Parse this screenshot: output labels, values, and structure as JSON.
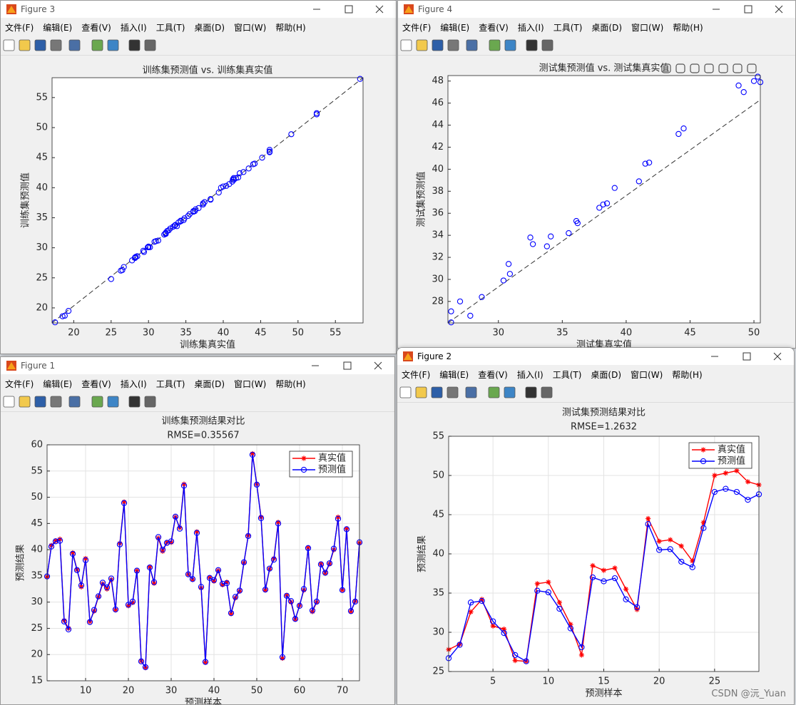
{
  "menu": [
    "文件(F)",
    "编辑(E)",
    "查看(V)",
    "插入(I)",
    "工具(T)",
    "桌面(D)",
    "窗口(W)",
    "帮助(H)"
  ],
  "watermark": "CSDN @沅_Yuan",
  "windows": [
    {
      "title": "Figure 3"
    },
    {
      "title": "Figure 4"
    },
    {
      "title": "Figure 1"
    },
    {
      "title": "Figure 2"
    }
  ],
  "chart_data": [
    {
      "type": "scatter",
      "title": "训练集预测值 vs. 训练集真实值",
      "xlabel": "训练集真实值",
      "ylabel": "训练集预测值",
      "color": "#0000ff",
      "xlim": [
        17.1,
        58.7
      ],
      "ylim": [
        17.5,
        58.3
      ],
      "xticks": [
        20,
        25,
        30,
        35,
        40,
        45,
        50,
        55
      ],
      "yticks": [
        20,
        25,
        30,
        35,
        40,
        45,
        50,
        55
      ],
      "grid": false,
      "reference_line": {
        "x": [
          17.1,
          58.7
        ],
        "y": [
          17.5,
          58.3
        ]
      },
      "x": [
        34.8,
        40.8,
        41.7,
        42,
        26.5,
        25,
        39.4,
        36.2,
        32.9,
        38.3,
        26.3,
        28.3,
        31,
        33.5,
        32.5,
        34.3,
        28.5,
        41.2,
        49.1,
        29.3,
        29.9,
        36,
        18.8,
        17.5,
        36.7,
        33.6,
        42.2,
        39.7,
        41.4,
        41.4,
        46.2,
        44.2,
        52.5,
        35.3,
        34.3,
        43.4,
        32.7,
        18.5,
        34.7,
        34,
        36,
        33.3,
        33.8,
        27.8,
        30.8,
        32.1,
        37.5,
        42.7,
        58.3,
        52.5,
        46.2,
        32.3,
        36.3,
        38.3,
        45.2,
        19.3,
        31.3,
        30,
        26.7,
        29.4,
        32.3,
        40.4,
        28.2,
        30,
        37.3,
        35.5,
        37.3,
        40,
        46.2,
        32.3,
        44,
        28.2,
        30.2,
        41.3
      ],
      "y": [
        34.9,
        40.6,
        41.6,
        41.7,
        26.3,
        24.8,
        39.2,
        36.1,
        33.2,
        38,
        26.2,
        28.5,
        31.1,
        33.7,
        32.8,
        34.5,
        28.6,
        41,
        48.9,
        29.5,
        30.1,
        36,
        18.7,
        17.6,
        36.6,
        33.8,
        42.4,
        40,
        41.3,
        41.6,
        46.3,
        44,
        52.2,
        35.3,
        34.4,
        43.2,
        32.9,
        18.6,
        34.6,
        34.2,
        36.1,
        33.5,
        33.6,
        27.9,
        31,
        32.2,
        37.6,
        42.6,
        58.1,
        52.4,
        46,
        32.4,
        36.4,
        38.1,
        45,
        19.5,
        31.2,
        30.2,
        26.8,
        29.3,
        32.5,
        40.3,
        28.4,
        30.1,
        37.2,
        35.6,
        37.4,
        40.2,
        45.9,
        32.3,
        43.9,
        28.3,
        30.1,
        41.4
      ]
    },
    {
      "type": "scatter",
      "title": "测试集预测值 vs. 测试集真实值",
      "xlabel": "测试集真实值",
      "ylabel": "测试集预测值",
      "color": "#0000ff",
      "xlim": [
        26.05,
        50.5
      ],
      "ylim": [
        26.05,
        48.5
      ],
      "xticks": [
        30,
        35,
        40,
        45,
        50
      ],
      "yticks": [
        28,
        30,
        32,
        34,
        36,
        38,
        40,
        42,
        44,
        46,
        48
      ],
      "grid": false,
      "reference_line": {
        "x": [
          26.05,
          50.5
        ],
        "y": [
          26.05,
          46.3
        ]
      },
      "x": [
        26.3,
        26.3,
        27,
        27.8,
        28.7,
        30.4,
        30.8,
        30.9,
        32.5,
        32.7,
        33.8,
        34.1,
        35.5,
        36.1,
        36.2,
        37.9,
        38.2,
        38.5,
        39.1,
        41,
        41.5,
        41.8,
        44.1,
        44.5,
        48.8,
        49.2,
        50,
        50.3,
        50.5
      ],
      "y": [
        26.1,
        27.1,
        28,
        26.7,
        28.4,
        29.9,
        31.4,
        30.5,
        33.8,
        33.2,
        33,
        33.9,
        34.2,
        35.3,
        35.1,
        36.5,
        36.8,
        36.9,
        38.3,
        38.9,
        40.5,
        40.6,
        43.2,
        43.7,
        47.6,
        47,
        48,
        48.4,
        47.9
      ]
    },
    {
      "type": "line",
      "title": "训练集预测结果对比",
      "subtitle": "RMSE=0.35567",
      "xlabel": "预测样本",
      "ylabel": "预测结果",
      "xlim": [
        1,
        74
      ],
      "ylim": [
        15,
        60
      ],
      "xticks": [
        10,
        20,
        30,
        40,
        50,
        60,
        70
      ],
      "yticks": [
        15,
        20,
        25,
        30,
        35,
        40,
        45,
        50,
        55,
        60
      ],
      "grid": true,
      "legend": "upper right",
      "x": [
        1,
        2,
        3,
        4,
        5,
        6,
        7,
        8,
        9,
        10,
        11,
        12,
        13,
        14,
        15,
        16,
        17,
        18,
        19,
        20,
        21,
        22,
        23,
        24,
        25,
        26,
        27,
        28,
        29,
        30,
        31,
        32,
        33,
        34,
        35,
        36,
        37,
        38,
        39,
        40,
        41,
        42,
        43,
        44,
        45,
        46,
        47,
        48,
        49,
        50,
        51,
        52,
        53,
        54,
        55,
        56,
        57,
        58,
        59,
        60,
        61,
        62,
        63,
        64,
        65,
        66,
        67,
        68,
        69,
        70,
        71,
        72,
        73,
        74
      ],
      "series": [
        {
          "name": "真实值",
          "color": "#ff0000",
          "marker": "star",
          "values": [
            34.8,
            40.8,
            41.7,
            42,
            26.5,
            25,
            39.4,
            36.2,
            32.9,
            38.3,
            26.3,
            28.3,
            31,
            33.5,
            32.5,
            34.3,
            28.5,
            41.2,
            49.1,
            29.3,
            29.9,
            36,
            18.8,
            17.5,
            36.7,
            33.6,
            42.2,
            39.7,
            41.4,
            41.4,
            46.2,
            44.2,
            52.5,
            35.3,
            34.3,
            43.4,
            32.7,
            18.5,
            34.7,
            34,
            36,
            33.3,
            33.8,
            27.8,
            30.8,
            32.1,
            37.5,
            42.7,
            58.3,
            52.5,
            46.2,
            32.3,
            36.3,
            38.3,
            45.2,
            19.3,
            31.3,
            30,
            26.7,
            29.4,
            32.3,
            40.4,
            28.2,
            30,
            37.3,
            35.5,
            37.3,
            40,
            46.2,
            32.3,
            44,
            28.2,
            30.2,
            41.3
          ]
        },
        {
          "name": "预测值",
          "color": "#0000ff",
          "marker": "circle",
          "values": [
            34.9,
            40.6,
            41.6,
            41.7,
            26.3,
            24.8,
            39.2,
            36.1,
            33.2,
            38,
            26.2,
            28.5,
            31.1,
            33.7,
            32.8,
            34.5,
            28.6,
            41,
            48.9,
            29.5,
            30.1,
            36,
            18.7,
            17.6,
            36.6,
            33.8,
            42.4,
            40,
            41.3,
            41.6,
            46.3,
            44,
            52.2,
            35.3,
            34.4,
            43.2,
            32.9,
            18.6,
            34.6,
            34.2,
            36.1,
            33.5,
            33.6,
            27.9,
            31,
            32.2,
            37.6,
            42.6,
            58.1,
            52.4,
            46,
            32.4,
            36.4,
            38.1,
            45,
            19.5,
            31.2,
            30.2,
            26.8,
            29.3,
            32.5,
            40.3,
            28.4,
            30.1,
            37.2,
            35.6,
            37.4,
            40.2,
            45.9,
            32.3,
            43.9,
            28.3,
            30.1,
            41.4
          ]
        }
      ]
    },
    {
      "type": "line",
      "title": "测试集预测结果对比",
      "subtitle": "RMSE=1.2632",
      "xlabel": "预测样本",
      "ylabel": "预测结果",
      "xlim": [
        1,
        29
      ],
      "ylim": [
        25,
        55
      ],
      "xticks": [
        5,
        10,
        15,
        20,
        25
      ],
      "yticks": [
        25,
        30,
        35,
        40,
        45,
        50,
        55
      ],
      "grid": true,
      "legend": "upper right",
      "x": [
        1,
        2,
        3,
        4,
        5,
        6,
        7,
        8,
        9,
        10,
        11,
        12,
        13,
        14,
        15,
        16,
        17,
        18,
        19,
        20,
        21,
        22,
        23,
        24,
        25,
        26,
        27,
        28,
        29
      ],
      "series": [
        {
          "name": "真实值",
          "color": "#ff0000",
          "marker": "star",
          "values": [
            27.8,
            28.5,
            32.6,
            34.2,
            30.8,
            30.4,
            26.4,
            26.3,
            36.2,
            36.4,
            33.8,
            31,
            27.1,
            38.5,
            37.9,
            38.2,
            35.5,
            32.9,
            44.5,
            41.6,
            41.8,
            41,
            39.1,
            44,
            50,
            50.3,
            50.6,
            49.2,
            48.8
          ]
        },
        {
          "name": "预测值",
          "color": "#0000ff",
          "marker": "circle",
          "values": [
            26.7,
            28.4,
            33.8,
            34,
            31.4,
            29.9,
            27.1,
            26.3,
            35.3,
            35.1,
            33,
            30.5,
            28.1,
            37,
            36.5,
            36.9,
            34.2,
            33.2,
            43.8,
            40.5,
            40.6,
            39,
            38.3,
            43.3,
            47.9,
            48.3,
            47.9,
            46.9,
            47.6
          ]
        }
      ]
    }
  ]
}
